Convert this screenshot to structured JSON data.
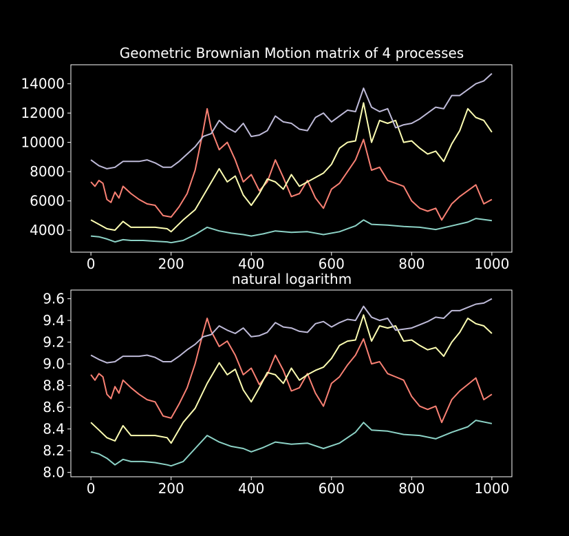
{
  "colors": {
    "background": "#000000",
    "axes": "#ffffff",
    "text": "#ffffff",
    "series": [
      "#8dd3c7",
      "#fa8174",
      "#feffb3",
      "#bfbbd9"
    ]
  },
  "chart_data": [
    {
      "type": "line",
      "title": "Geometric Brownian Motion matrix of 4 processes",
      "xlabel": "",
      "ylabel": "",
      "xlim": [
        -50,
        1050
      ],
      "ylim": [
        2500,
        15300
      ],
      "xticks": [
        0,
        200,
        400,
        600,
        800,
        1000
      ],
      "xtick_labels": [
        "0",
        "200",
        "400",
        "600",
        "800",
        "1000"
      ],
      "yticks": [
        4000,
        6000,
        8000,
        10000,
        12000,
        14000
      ],
      "ytick_labels": [
        "4000",
        "6000",
        "8000",
        "10000",
        "12000",
        "14000"
      ],
      "grid": false,
      "series": [
        {
          "color": "#8dd3c7",
          "x": [
            0,
            20,
            40,
            60,
            80,
            100,
            130,
            160,
            190,
            200,
            230,
            260,
            290,
            320,
            350,
            380,
            400,
            430,
            460,
            500,
            540,
            580,
            620,
            660,
            680,
            700,
            740,
            780,
            820,
            860,
            900,
            940,
            960,
            1000
          ],
          "values": [
            3600,
            3550,
            3400,
            3200,
            3350,
            3300,
            3300,
            3250,
            3200,
            3150,
            3300,
            3700,
            4200,
            3950,
            3800,
            3700,
            3600,
            3750,
            3950,
            3850,
            3900,
            3700,
            3900,
            4300,
            4700,
            4400,
            4350,
            4250,
            4200,
            4050,
            4300,
            4550,
            4800,
            4650
          ]
        },
        {
          "color": "#fa8174",
          "x": [
            0,
            10,
            20,
            30,
            40,
            50,
            60,
            70,
            80,
            100,
            120,
            140,
            160,
            180,
            200,
            220,
            240,
            260,
            280,
            290,
            300,
            320,
            340,
            360,
            380,
            400,
            420,
            440,
            460,
            480,
            500,
            520,
            540,
            560,
            580,
            600,
            620,
            640,
            660,
            680,
            700,
            720,
            740,
            760,
            780,
            800,
            820,
            840,
            860,
            875,
            900,
            920,
            940,
            960,
            980,
            1000
          ],
          "values": [
            7300,
            7000,
            7400,
            7200,
            6100,
            5900,
            6600,
            6200,
            7000,
            6500,
            6100,
            5800,
            5700,
            5000,
            4900,
            5600,
            6500,
            8100,
            10800,
            12300,
            10900,
            9500,
            10000,
            8800,
            7300,
            7800,
            6700,
            7300,
            8800,
            7600,
            6300,
            6500,
            7400,
            6200,
            5500,
            6800,
            7200,
            8000,
            8800,
            10200,
            8100,
            8300,
            7400,
            7200,
            7000,
            6000,
            5500,
            5300,
            5500,
            4700,
            5800,
            6300,
            6700,
            7100,
            5800,
            6100
          ]
        },
        {
          "color": "#feffb3",
          "x": [
            0,
            20,
            40,
            60,
            80,
            100,
            130,
            160,
            190,
            200,
            230,
            260,
            290,
            320,
            340,
            360,
            380,
            400,
            420,
            440,
            460,
            480,
            500,
            520,
            540,
            560,
            580,
            600,
            620,
            640,
            660,
            680,
            700,
            720,
            740,
            760,
            780,
            800,
            820,
            840,
            860,
            880,
            900,
            920,
            940,
            960,
            980,
            1000
          ],
          "values": [
            4700,
            4400,
            4100,
            4000,
            4600,
            4200,
            4200,
            4200,
            4100,
            3900,
            4700,
            5400,
            6800,
            8200,
            7300,
            7700,
            6400,
            5700,
            6500,
            7500,
            7300,
            6800,
            7800,
            7000,
            7300,
            7600,
            7900,
            8500,
            9600,
            10000,
            10100,
            12700,
            10000,
            11500,
            11300,
            11500,
            10000,
            10100,
            9600,
            9200,
            9400,
            8700,
            9900,
            10800,
            12300,
            11700,
            11500,
            10700
          ]
        },
        {
          "color": "#bfbbd9",
          "x": [
            0,
            20,
            40,
            60,
            80,
            100,
            120,
            140,
            160,
            180,
            200,
            220,
            240,
            260,
            280,
            300,
            320,
            340,
            360,
            380,
            400,
            420,
            440,
            460,
            480,
            500,
            520,
            540,
            560,
            580,
            600,
            620,
            640,
            660,
            680,
            700,
            720,
            740,
            760,
            780,
            800,
            820,
            840,
            860,
            880,
            900,
            920,
            940,
            960,
            980,
            1000
          ],
          "values": [
            8800,
            8400,
            8200,
            8300,
            8700,
            8700,
            8700,
            8800,
            8600,
            8300,
            8300,
            8700,
            9200,
            9700,
            10400,
            10600,
            11500,
            11000,
            10700,
            11300,
            10400,
            10500,
            10800,
            11800,
            11400,
            11300,
            10900,
            10800,
            11700,
            12000,
            11400,
            11800,
            12200,
            12100,
            13700,
            12400,
            12100,
            12300,
            11000,
            11200,
            11300,
            11600,
            12000,
            12400,
            12300,
            13200,
            13200,
            13600,
            14000,
            14200,
            14700
          ]
        }
      ]
    },
    {
      "type": "line",
      "title": "natural logarithm",
      "xlabel": "",
      "ylabel": "",
      "xlim": [
        -50,
        1050
      ],
      "ylim": [
        7.96,
        9.68
      ],
      "xticks": [
        0,
        200,
        400,
        600,
        800,
        1000
      ],
      "xtick_labels": [
        "0",
        "200",
        "400",
        "600",
        "800",
        "1000"
      ],
      "yticks": [
        8.0,
        8.2,
        8.4,
        8.6,
        8.8,
        9.0,
        9.2,
        9.4,
        9.6
      ],
      "ytick_labels": [
        "8.0",
        "8.2",
        "8.4",
        "8.6",
        "8.8",
        "9.0",
        "9.2",
        "9.4",
        "9.6"
      ],
      "grid": false,
      "series": [
        {
          "color": "#8dd3c7",
          "x": [
            0,
            20,
            40,
            60,
            80,
            100,
            130,
            160,
            190,
            200,
            230,
            260,
            290,
            320,
            350,
            380,
            400,
            430,
            460,
            500,
            540,
            580,
            620,
            660,
            680,
            700,
            740,
            780,
            820,
            860,
            900,
            940,
            960,
            1000
          ],
          "values": [
            8.19,
            8.17,
            8.13,
            8.07,
            8.12,
            8.1,
            8.1,
            8.09,
            8.07,
            8.06,
            8.1,
            8.22,
            8.34,
            8.28,
            8.24,
            8.22,
            8.19,
            8.23,
            8.28,
            8.26,
            8.27,
            8.22,
            8.27,
            8.37,
            8.46,
            8.39,
            8.38,
            8.35,
            8.34,
            8.31,
            8.37,
            8.42,
            8.48,
            8.45
          ]
        },
        {
          "color": "#fa8174",
          "x": [
            0,
            10,
            20,
            30,
            40,
            50,
            60,
            70,
            80,
            100,
            120,
            140,
            160,
            180,
            200,
            220,
            240,
            260,
            280,
            290,
            300,
            320,
            340,
            360,
            380,
            400,
            420,
            440,
            460,
            480,
            500,
            520,
            540,
            560,
            580,
            600,
            620,
            640,
            660,
            680,
            700,
            720,
            740,
            760,
            780,
            800,
            820,
            840,
            860,
            875,
            900,
            920,
            940,
            960,
            980,
            1000
          ],
          "values": [
            8.9,
            8.85,
            8.91,
            8.88,
            8.72,
            8.68,
            8.79,
            8.73,
            8.85,
            8.78,
            8.72,
            8.67,
            8.65,
            8.52,
            8.5,
            8.63,
            8.78,
            9.0,
            9.29,
            9.42,
            9.3,
            9.16,
            9.21,
            9.08,
            8.9,
            8.96,
            8.81,
            8.9,
            9.08,
            8.94,
            8.75,
            8.78,
            8.91,
            8.73,
            8.61,
            8.82,
            8.88,
            8.99,
            9.08,
            9.23,
            9.0,
            9.02,
            8.91,
            8.88,
            8.85,
            8.7,
            8.61,
            8.58,
            8.61,
            8.46,
            8.67,
            8.75,
            8.81,
            8.87,
            8.67,
            8.72
          ]
        },
        {
          "color": "#feffb3",
          "x": [
            0,
            20,
            40,
            60,
            80,
            100,
            130,
            160,
            190,
            200,
            230,
            260,
            290,
            320,
            340,
            360,
            380,
            400,
            420,
            440,
            460,
            480,
            500,
            520,
            540,
            560,
            580,
            600,
            620,
            640,
            660,
            680,
            700,
            720,
            740,
            760,
            780,
            800,
            820,
            840,
            860,
            880,
            900,
            920,
            940,
            960,
            980,
            1000
          ],
          "values": [
            8.46,
            8.39,
            8.32,
            8.29,
            8.43,
            8.34,
            8.34,
            8.34,
            8.32,
            8.27,
            8.46,
            8.59,
            8.82,
            9.01,
            8.9,
            8.95,
            8.76,
            8.65,
            8.78,
            8.92,
            8.9,
            8.82,
            8.96,
            8.85,
            8.9,
            8.94,
            8.97,
            9.05,
            9.17,
            9.21,
            9.22,
            9.45,
            9.21,
            9.35,
            9.33,
            9.35,
            9.21,
            9.22,
            9.17,
            9.13,
            9.15,
            9.07,
            9.2,
            9.29,
            9.42,
            9.37,
            9.35,
            9.28
          ]
        },
        {
          "color": "#bfbbd9",
          "x": [
            0,
            20,
            40,
            60,
            80,
            100,
            120,
            140,
            160,
            180,
            200,
            220,
            240,
            260,
            280,
            300,
            320,
            340,
            360,
            380,
            400,
            420,
            440,
            460,
            480,
            500,
            520,
            540,
            560,
            580,
            600,
            620,
            640,
            660,
            680,
            700,
            720,
            740,
            760,
            780,
            800,
            820,
            840,
            860,
            880,
            900,
            920,
            940,
            960,
            980,
            1000
          ],
          "values": [
            9.08,
            9.04,
            9.01,
            9.02,
            9.07,
            9.07,
            9.07,
            9.08,
            9.06,
            9.02,
            9.02,
            9.07,
            9.13,
            9.18,
            9.25,
            9.27,
            9.35,
            9.31,
            9.28,
            9.33,
            9.25,
            9.26,
            9.29,
            9.38,
            9.34,
            9.33,
            9.3,
            9.29,
            9.37,
            9.39,
            9.34,
            9.38,
            9.41,
            9.4,
            9.53,
            9.43,
            9.4,
            9.42,
            9.31,
            9.32,
            9.33,
            9.36,
            9.39,
            9.43,
            9.42,
            9.49,
            9.49,
            9.52,
            9.55,
            9.56,
            9.6
          ]
        }
      ]
    }
  ]
}
